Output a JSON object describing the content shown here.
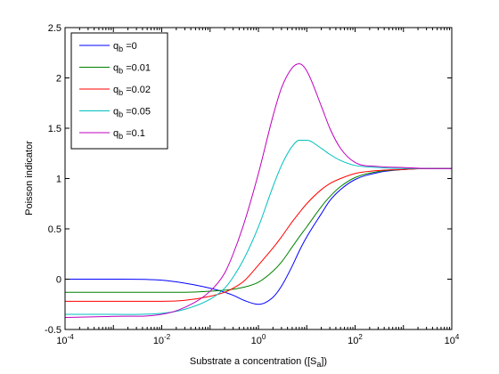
{
  "chart_data": {
    "type": "line",
    "xlabel": "Substrate a concentration ([S",
    "xlabel_sub": "a",
    "xlabel_end": "])",
    "ylabel": "Poisson indicator",
    "xscale": "log",
    "xlim": [
      0.0001,
      10000
    ],
    "ylim": [
      -0.5,
      2.5
    ],
    "grid": false,
    "legend_position": "top-left",
    "x_ticks": [
      {
        "base": "10",
        "exp": "-4"
      },
      {
        "base": "10",
        "exp": "-2"
      },
      {
        "base": "10",
        "exp": "0"
      },
      {
        "base": "10",
        "exp": "2"
      },
      {
        "base": "10",
        "exp": "4"
      }
    ],
    "y_ticks": [
      "-0.5",
      "0",
      "0.5",
      "1",
      "1.5",
      "2",
      "2.5"
    ],
    "y_tick_values": [
      -0.5,
      0,
      0.5,
      1,
      1.5,
      2,
      2.5
    ],
    "x": [
      0.0001,
      0.001,
      0.01,
      0.03,
      0.1,
      0.2,
      0.3,
      0.5,
      1,
      2,
      3,
      5,
      7,
      10,
      20,
      30,
      50,
      100,
      300,
      1000,
      3000,
      10000
    ],
    "series": [
      {
        "name": "q",
        "sub": "b",
        "suffix": " =0",
        "color": "#0000ff",
        "values": [
          0.0,
          0.0,
          -0.01,
          -0.04,
          -0.09,
          -0.13,
          -0.16,
          -0.21,
          -0.25,
          -0.18,
          -0.07,
          0.13,
          0.28,
          0.42,
          0.65,
          0.78,
          0.89,
          0.99,
          1.06,
          1.09,
          1.1,
          1.1
        ]
      },
      {
        "name": "q",
        "sub": "b",
        "suffix": " =0.01",
        "color": "#008000",
        "values": [
          -0.13,
          -0.13,
          -0.13,
          -0.13,
          -0.12,
          -0.11,
          -0.1,
          -0.08,
          -0.03,
          0.08,
          0.17,
          0.32,
          0.42,
          0.52,
          0.72,
          0.82,
          0.92,
          1.01,
          1.07,
          1.09,
          1.1,
          1.1
        ]
      },
      {
        "name": "q",
        "sub": "b",
        "suffix": " =0.02",
        "color": "#ff0000",
        "values": [
          -0.22,
          -0.22,
          -0.22,
          -0.21,
          -0.17,
          -0.13,
          -0.09,
          -0.02,
          0.14,
          0.31,
          0.42,
          0.57,
          0.66,
          0.75,
          0.89,
          0.95,
          1.0,
          1.05,
          1.08,
          1.09,
          1.1,
          1.1
        ]
      },
      {
        "name": "q",
        "sub": "b",
        "suffix": " =0.05",
        "color": "#00bfbf",
        "values": [
          -0.35,
          -0.35,
          -0.34,
          -0.3,
          -0.2,
          -0.09,
          0.02,
          0.2,
          0.52,
          0.92,
          1.13,
          1.32,
          1.38,
          1.38,
          1.3,
          1.24,
          1.18,
          1.13,
          1.11,
          1.1,
          1.1,
          1.1
        ]
      },
      {
        "name": "q",
        "sub": "b",
        "suffix": " =0.1",
        "color": "#bf00bf",
        "values": [
          -0.38,
          -0.37,
          -0.35,
          -0.28,
          -0.12,
          0.06,
          0.25,
          0.55,
          1.05,
          1.62,
          1.9,
          2.1,
          2.14,
          2.07,
          1.72,
          1.5,
          1.3,
          1.16,
          1.12,
          1.11,
          1.1,
          1.1
        ]
      }
    ]
  }
}
